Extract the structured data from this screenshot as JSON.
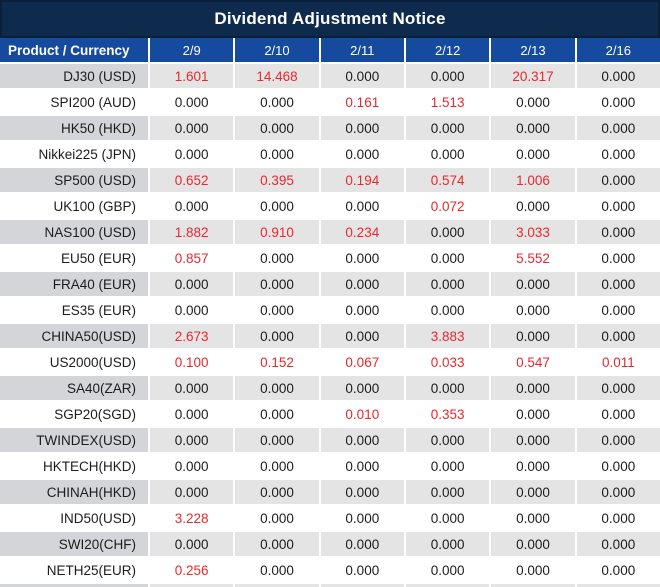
{
  "title": "Dividend Adjustment Notice",
  "colors": {
    "navy": "#0e2a4c",
    "blue": "#164a9f",
    "red": "#e8282e",
    "gray_label": "#d3d5d9",
    "gray_cell": "#e4e4e5",
    "text": "#1c1c1c"
  },
  "table": {
    "product_header": "Product / Currency",
    "date_headers": [
      "2/9",
      "2/10",
      "2/11",
      "2/12",
      "2/13",
      "2/16"
    ],
    "rows": [
      {
        "product": "DJ30 (USD)",
        "values": [
          "1.601",
          "14.468",
          "0.000",
          "0.000",
          "20.317",
          "0.000"
        ],
        "red": [
          true,
          true,
          false,
          false,
          true,
          false
        ]
      },
      {
        "product": "SPI200 (AUD)",
        "values": [
          "0.000",
          "0.000",
          "0.161",
          "1.513",
          "0.000",
          "0.000"
        ],
        "red": [
          false,
          false,
          true,
          true,
          false,
          false
        ]
      },
      {
        "product": "HK50 (HKD)",
        "values": [
          "0.000",
          "0.000",
          "0.000",
          "0.000",
          "0.000",
          "0.000"
        ],
        "red": [
          false,
          false,
          false,
          false,
          false,
          false
        ]
      },
      {
        "product": "Nikkei225 (JPN)",
        "values": [
          "0.000",
          "0.000",
          "0.000",
          "0.000",
          "0.000",
          "0.000"
        ],
        "red": [
          false,
          false,
          false,
          false,
          false,
          false
        ]
      },
      {
        "product": "SP500 (USD)",
        "values": [
          "0.652",
          "0.395",
          "0.194",
          "0.574",
          "1.006",
          "0.000"
        ],
        "red": [
          true,
          true,
          true,
          true,
          true,
          false
        ]
      },
      {
        "product": "UK100 (GBP)",
        "values": [
          "0.000",
          "0.000",
          "0.000",
          "0.072",
          "0.000",
          "0.000"
        ],
        "red": [
          false,
          false,
          false,
          true,
          false,
          false
        ]
      },
      {
        "product": "NAS100 (USD)",
        "values": [
          "1.882",
          "0.910",
          "0.234",
          "0.000",
          "3.033",
          "0.000"
        ],
        "red": [
          true,
          true,
          true,
          false,
          true,
          false
        ]
      },
      {
        "product": "EU50 (EUR)",
        "values": [
          "0.857",
          "0.000",
          "0.000",
          "0.000",
          "5.552",
          "0.000"
        ],
        "red": [
          true,
          false,
          false,
          false,
          true,
          false
        ]
      },
      {
        "product": "FRA40 (EUR)",
        "values": [
          "0.000",
          "0.000",
          "0.000",
          "0.000",
          "0.000",
          "0.000"
        ],
        "red": [
          false,
          false,
          false,
          false,
          false,
          false
        ]
      },
      {
        "product": "ES35 (EUR)",
        "values": [
          "0.000",
          "0.000",
          "0.000",
          "0.000",
          "0.000",
          "0.000"
        ],
        "red": [
          false,
          false,
          false,
          false,
          false,
          false
        ]
      },
      {
        "product": "CHINA50(USD)",
        "values": [
          "2.673",
          "0.000",
          "0.000",
          "3.883",
          "0.000",
          "0.000"
        ],
        "red": [
          true,
          false,
          false,
          true,
          false,
          false
        ]
      },
      {
        "product": "US2000(USD)",
        "values": [
          "0.100",
          "0.152",
          "0.067",
          "0.033",
          "0.547",
          "0.011"
        ],
        "red": [
          true,
          true,
          true,
          true,
          true,
          true
        ]
      },
      {
        "product": "SA40(ZAR)",
        "values": [
          "0.000",
          "0.000",
          "0.000",
          "0.000",
          "0.000",
          "0.000"
        ],
        "red": [
          false,
          false,
          false,
          false,
          false,
          false
        ]
      },
      {
        "product": "SGP20(SGD)",
        "values": [
          "0.000",
          "0.000",
          "0.010",
          "0.353",
          "0.000",
          "0.000"
        ],
        "red": [
          false,
          false,
          true,
          true,
          false,
          false
        ]
      },
      {
        "product": "TWINDEX(USD)",
        "values": [
          "0.000",
          "0.000",
          "0.000",
          "0.000",
          "0.000",
          "0.000"
        ],
        "red": [
          false,
          false,
          false,
          false,
          false,
          false
        ]
      },
      {
        "product": "HKTECH(HKD)",
        "values": [
          "0.000",
          "0.000",
          "0.000",
          "0.000",
          "0.000",
          "0.000"
        ],
        "red": [
          false,
          false,
          false,
          false,
          false,
          false
        ]
      },
      {
        "product": "CHINAH(HKD)",
        "values": [
          "0.000",
          "0.000",
          "0.000",
          "0.000",
          "0.000",
          "0.000"
        ],
        "red": [
          false,
          false,
          false,
          false,
          false,
          false
        ]
      },
      {
        "product": "IND50(USD)",
        "values": [
          "3.228",
          "0.000",
          "0.000",
          "0.000",
          "0.000",
          "0.000"
        ],
        "red": [
          true,
          false,
          false,
          false,
          false,
          false
        ]
      },
      {
        "product": "SWI20(CHF)",
        "values": [
          "0.000",
          "0.000",
          "0.000",
          "0.000",
          "0.000",
          "0.000"
        ],
        "red": [
          false,
          false,
          false,
          false,
          false,
          false
        ]
      },
      {
        "product": "NETH25(EUR)",
        "values": [
          "0.256",
          "0.000",
          "0.000",
          "0.000",
          "0.000",
          "0.000"
        ],
        "red": [
          true,
          false,
          false,
          false,
          false,
          false
        ]
      }
    ]
  }
}
